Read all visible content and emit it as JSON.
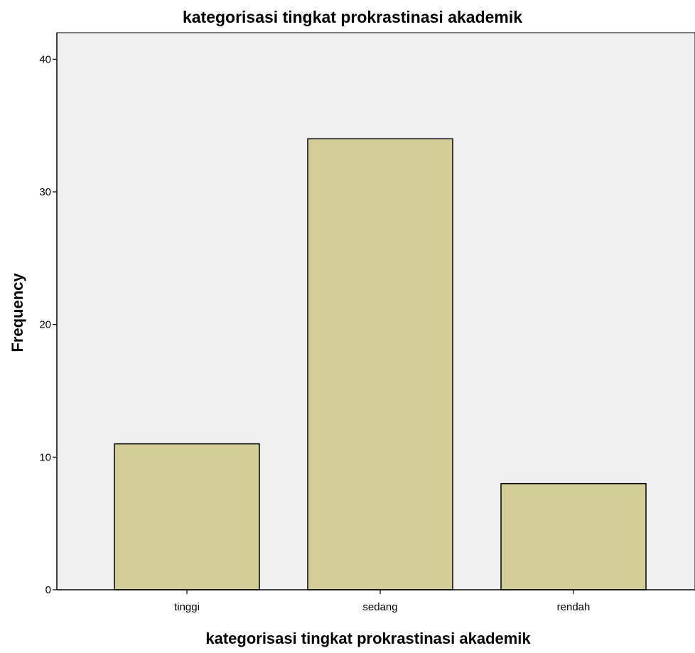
{
  "chart_data": {
    "type": "bar",
    "title": "kategorisasi tingkat prokrastinasi akademik",
    "xlabel": "kategorisasi tingkat prokrastinasi akademik",
    "ylabel": "Frequency",
    "categories": [
      "tinggi",
      "sedang",
      "rendah"
    ],
    "values": [
      11,
      34,
      8
    ],
    "ylim": [
      0,
      42
    ],
    "yticks": [
      "0",
      "10",
      "20",
      "30",
      "40"
    ],
    "grid": false,
    "legend": "none",
    "colors": {
      "bar_fill": "#d3ce98",
      "bar_stroke": "#000000",
      "plot_background": "#f0f0f0"
    }
  }
}
